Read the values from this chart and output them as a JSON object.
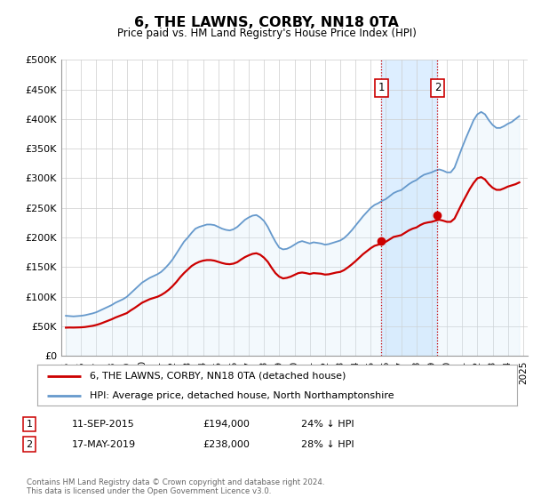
{
  "title": "6, THE LAWNS, CORBY, NN18 0TA",
  "subtitle": "Price paid vs. HM Land Registry's House Price Index (HPI)",
  "background_color": "#ffffff",
  "plot_bg_color": "#ffffff",
  "grid_color": "#cccccc",
  "hpi_color": "#6699cc",
  "hpi_fill_color": "#d0e8f8",
  "price_color": "#cc0000",
  "vspan_color": "#ddeeff",
  "dashed_color": "#cc0000",
  "ylim": [
    0,
    500000
  ],
  "yticks": [
    0,
    50000,
    100000,
    150000,
    200000,
    250000,
    300000,
    350000,
    400000,
    450000,
    500000
  ],
  "ytick_labels": [
    "£0",
    "£50K",
    "£100K",
    "£150K",
    "£200K",
    "£250K",
    "£300K",
    "£350K",
    "£400K",
    "£450K",
    "£500K"
  ],
  "xlim_start": 1994.7,
  "xlim_end": 2025.3,
  "xticks": [
    1995,
    1996,
    1997,
    1998,
    1999,
    2000,
    2001,
    2002,
    2003,
    2004,
    2005,
    2006,
    2007,
    2008,
    2009,
    2010,
    2011,
    2012,
    2013,
    2014,
    2015,
    2016,
    2017,
    2018,
    2019,
    2020,
    2021,
    2022,
    2023,
    2024,
    2025
  ],
  "sale1_x": 2015.7,
  "sale1_y": 194000,
  "sale1_label": "1",
  "sale1_date": "11-SEP-2015",
  "sale1_price": "£194,000",
  "sale1_hpi": "24% ↓ HPI",
  "sale2_x": 2019.38,
  "sale2_y": 238000,
  "sale2_label": "2",
  "sale2_date": "17-MAY-2019",
  "sale2_price": "£238,000",
  "sale2_hpi": "28% ↓ HPI",
  "legend_line1": "6, THE LAWNS, CORBY, NN18 0TA (detached house)",
  "legend_line2": "HPI: Average price, detached house, North Northamptonshire",
  "footnote": "Contains HM Land Registry data © Crown copyright and database right 2024.\nThis data is licensed under the Open Government Licence v3.0.",
  "hpi_data_x": [
    1995.0,
    1995.25,
    1995.5,
    1995.75,
    1996.0,
    1996.25,
    1996.5,
    1996.75,
    1997.0,
    1997.25,
    1997.5,
    1997.75,
    1998.0,
    1998.25,
    1998.5,
    1998.75,
    1999.0,
    1999.25,
    1999.5,
    1999.75,
    2000.0,
    2000.25,
    2000.5,
    2000.75,
    2001.0,
    2001.25,
    2001.5,
    2001.75,
    2002.0,
    2002.25,
    2002.5,
    2002.75,
    2003.0,
    2003.25,
    2003.5,
    2003.75,
    2004.0,
    2004.25,
    2004.5,
    2004.75,
    2005.0,
    2005.25,
    2005.5,
    2005.75,
    2006.0,
    2006.25,
    2006.5,
    2006.75,
    2007.0,
    2007.25,
    2007.5,
    2007.75,
    2008.0,
    2008.25,
    2008.5,
    2008.75,
    2009.0,
    2009.25,
    2009.5,
    2009.75,
    2010.0,
    2010.25,
    2010.5,
    2010.75,
    2011.0,
    2011.25,
    2011.5,
    2011.75,
    2012.0,
    2012.25,
    2012.5,
    2012.75,
    2013.0,
    2013.25,
    2013.5,
    2013.75,
    2014.0,
    2014.25,
    2014.5,
    2014.75,
    2015.0,
    2015.25,
    2015.5,
    2015.75,
    2016.0,
    2016.25,
    2016.5,
    2016.75,
    2017.0,
    2017.25,
    2017.5,
    2017.75,
    2018.0,
    2018.25,
    2018.5,
    2018.75,
    2019.0,
    2019.25,
    2019.5,
    2019.75,
    2020.0,
    2020.25,
    2020.5,
    2020.75,
    2021.0,
    2021.25,
    2021.5,
    2021.75,
    2022.0,
    2022.25,
    2022.5,
    2022.75,
    2023.0,
    2023.25,
    2023.5,
    2023.75,
    2024.0,
    2024.25,
    2024.5,
    2024.75
  ],
  "hpi_data_y": [
    68000,
    67500,
    67000,
    67500,
    68000,
    69000,
    70500,
    72000,
    74000,
    77000,
    80000,
    83000,
    86000,
    90000,
    93000,
    96000,
    100000,
    106000,
    112000,
    118000,
    124000,
    128000,
    132000,
    135000,
    138000,
    142000,
    148000,
    155000,
    163000,
    173000,
    183000,
    193000,
    200000,
    208000,
    215000,
    218000,
    220000,
    222000,
    222000,
    221000,
    218000,
    215000,
    213000,
    212000,
    214000,
    218000,
    224000,
    230000,
    234000,
    237000,
    238000,
    234000,
    228000,
    218000,
    205000,
    193000,
    183000,
    180000,
    181000,
    184000,
    188000,
    192000,
    194000,
    192000,
    190000,
    192000,
    191000,
    190000,
    188000,
    189000,
    191000,
    193000,
    195000,
    199000,
    205000,
    212000,
    220000,
    228000,
    236000,
    243000,
    250000,
    255000,
    258000,
    262000,
    265000,
    270000,
    275000,
    278000,
    280000,
    285000,
    290000,
    294000,
    297000,
    302000,
    306000,
    308000,
    310000,
    313000,
    315000,
    313000,
    310000,
    310000,
    318000,
    335000,
    352000,
    368000,
    383000,
    398000,
    408000,
    412000,
    408000,
    398000,
    390000,
    385000,
    385000,
    388000,
    392000,
    395000,
    400000,
    405000
  ],
  "price_data_x": [
    1995.0,
    1995.25,
    1995.5,
    1995.75,
    1996.0,
    1996.25,
    1996.5,
    1996.75,
    1997.0,
    1997.25,
    1997.5,
    1997.75,
    1998.0,
    1998.25,
    1998.5,
    1998.75,
    1999.0,
    1999.25,
    1999.5,
    1999.75,
    2000.0,
    2000.25,
    2000.5,
    2000.75,
    2001.0,
    2001.25,
    2001.5,
    2001.75,
    2002.0,
    2002.25,
    2002.5,
    2002.75,
    2003.0,
    2003.25,
    2003.5,
    2003.75,
    2004.0,
    2004.25,
    2004.5,
    2004.75,
    2005.0,
    2005.25,
    2005.5,
    2005.75,
    2006.0,
    2006.25,
    2006.5,
    2006.75,
    2007.0,
    2007.25,
    2007.5,
    2007.75,
    2008.0,
    2008.25,
    2008.5,
    2008.75,
    2009.0,
    2009.25,
    2009.5,
    2009.75,
    2010.0,
    2010.25,
    2010.5,
    2010.75,
    2011.0,
    2011.25,
    2011.5,
    2011.75,
    2012.0,
    2012.25,
    2012.5,
    2012.75,
    2013.0,
    2013.25,
    2013.5,
    2013.75,
    2014.0,
    2014.25,
    2014.5,
    2014.75,
    2015.0,
    2015.25,
    2015.5,
    2015.75,
    2016.0,
    2016.25,
    2016.5,
    2016.75,
    2017.0,
    2017.25,
    2017.5,
    2017.75,
    2018.0,
    2018.25,
    2018.5,
    2018.75,
    2019.0,
    2019.25,
    2019.5,
    2019.75,
    2020.0,
    2020.25,
    2020.5,
    2020.75,
    2021.0,
    2021.25,
    2021.5,
    2021.75,
    2022.0,
    2022.25,
    2022.5,
    2022.75,
    2023.0,
    2023.25,
    2023.5,
    2023.75,
    2024.0,
    2024.25,
    2024.5,
    2024.75
  ],
  "price_data_y": [
    48000,
    48200,
    48100,
    48300,
    48500,
    49000,
    50000,
    51000,
    52500,
    54500,
    57000,
    59500,
    62000,
    65000,
    67500,
    70000,
    72500,
    77000,
    81000,
    85500,
    90000,
    93000,
    96000,
    98000,
    100000,
    103000,
    107000,
    112000,
    118000,
    125000,
    133000,
    140000,
    146000,
    152000,
    156000,
    159000,
    161000,
    162000,
    162000,
    161000,
    159000,
    157000,
    155500,
    155000,
    156000,
    158500,
    163000,
    167000,
    170000,
    172500,
    173500,
    171000,
    166000,
    159000,
    149000,
    140000,
    134000,
    131000,
    132000,
    134000,
    137000,
    140000,
    141000,
    140000,
    138500,
    140000,
    139500,
    139000,
    137500,
    138000,
    139500,
    141000,
    142000,
    145000,
    149500,
    154500,
    160000,
    166000,
    172000,
    177000,
    182000,
    186000,
    188000,
    191000,
    193000,
    197000,
    201000,
    202500,
    204000,
    208000,
    212000,
    215000,
    217000,
    221000,
    224000,
    225500,
    226500,
    228500,
    230000,
    228500,
    226500,
    226500,
    232000,
    245000,
    258000,
    270000,
    282000,
    292000,
    300000,
    302000,
    298000,
    290000,
    284000,
    280500,
    280500,
    283000,
    286000,
    288000,
    290000,
    293000
  ]
}
